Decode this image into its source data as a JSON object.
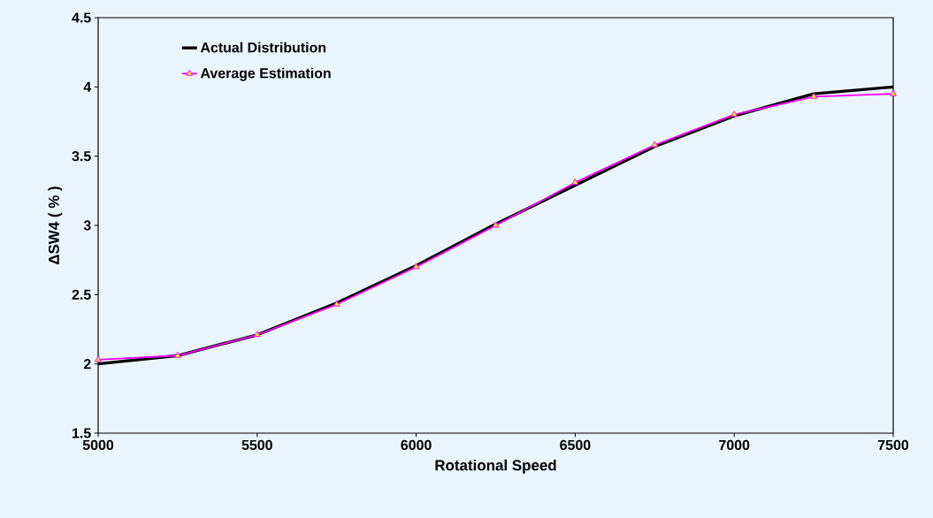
{
  "chart_data": {
    "type": "line",
    "xlabel": "Rotational Speed",
    "ylabel": "ΔSW4 ( % )",
    "x": [
      5000,
      5250,
      5500,
      5750,
      6000,
      6250,
      6500,
      6750,
      7000,
      7250,
      7500
    ],
    "series": [
      {
        "name": "Actual Distribution",
        "color": "#000000",
        "marker": "none",
        "values": [
          2.0,
          2.06,
          2.21,
          2.44,
          2.71,
          3.01,
          3.29,
          3.57,
          3.79,
          3.95,
          4.0
        ]
      },
      {
        "name": "Average Estimation",
        "color": "#ff00ff",
        "marker": "triangle",
        "values": [
          2.03,
          2.06,
          2.21,
          2.43,
          2.7,
          3.0,
          3.31,
          3.58,
          3.8,
          3.93,
          3.95
        ]
      }
    ],
    "xlim": [
      5000,
      7500
    ],
    "ylim": [
      1.5,
      4.5
    ],
    "xticks": [
      5000,
      5500,
      6000,
      6500,
      7000,
      7500
    ],
    "yticks": [
      1.5,
      2,
      2.5,
      3,
      3.5,
      4,
      4.5
    ],
    "legend": "top left",
    "grid": false,
    "line_style": "solid"
  }
}
